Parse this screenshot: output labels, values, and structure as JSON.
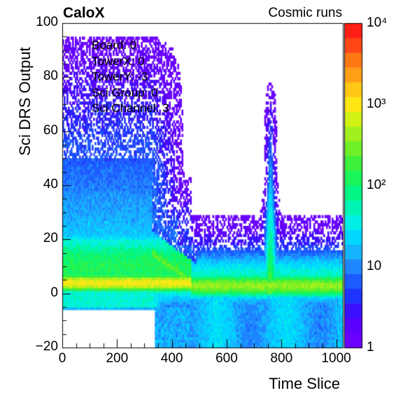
{
  "header": {
    "brand": "CaloX",
    "subtitle": "Cosmic runs"
  },
  "info": {
    "lines": [
      "Board: 0",
      "TowerX: 0",
      "TowerY: -3",
      "Sci Group: 0",
      "Sci Channel: 3"
    ]
  },
  "chart_data": {
    "type": "heatmap",
    "xlabel": "Time Slice",
    "ylabel": "Sci DRS Output",
    "xlim": [
      0,
      1024
    ],
    "ylim": [
      -20,
      100
    ],
    "x_ticks": [
      "0",
      "200",
      "400",
      "600",
      "800",
      "1000"
    ],
    "y_ticks": [
      "−20",
      "0",
      "20",
      "40",
      "60",
      "80",
      "100"
    ],
    "z_scale": "log",
    "zlim": [
      1,
      10000
    ],
    "colorbar_ticks": [
      "1",
      "10",
      "10²",
      "10³",
      "10⁴"
    ],
    "palette": [
      "#6b00ff",
      "#5a00ff",
      "#3a10ff",
      "#1f33ff",
      "#1c5bff",
      "#1e86ff",
      "#14b4ff",
      "#00d7ff",
      "#00f0e6",
      "#00f5b4",
      "#00f582",
      "#1af55a",
      "#3cf03c",
      "#6ef028",
      "#a0f01e",
      "#d2f014",
      "#ffe614",
      "#ffc814",
      "#ffa014",
      "#ff7814",
      "#ff4614",
      "#ff1e14"
    ],
    "features": {
      "baseline_band": {
        "y_center": 4,
        "x_range": [
          0,
          460
        ],
        "level": "1e3"
      },
      "post_pulse_band": {
        "y_center": 3,
        "x_range": [
          480,
          1024
        ],
        "level": "3e2"
      },
      "ramp": {
        "from": [
          340,
          15
        ],
        "to": [
          490,
          3
        ]
      },
      "peak": {
        "x": 760,
        "y_max": 70,
        "x_range": [
          680,
          840
        ]
      },
      "low_cutoff": {
        "y": -5,
        "x_range": [
          0,
          340
        ]
      }
    }
  }
}
